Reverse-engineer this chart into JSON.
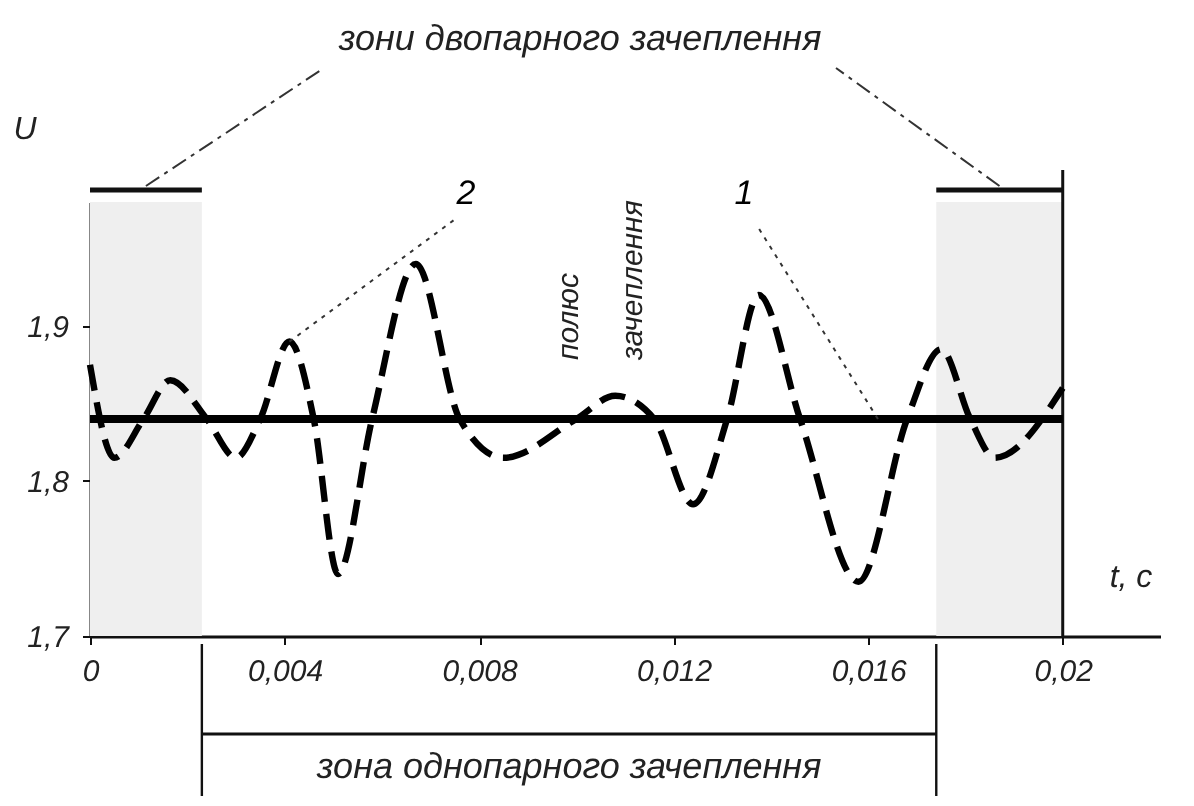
{
  "chart_data": {
    "type": "line",
    "xlabel": "t, c",
    "ylabel": "U",
    "xlim": [
      0,
      0.022
    ],
    "ylim": [
      1.7,
      1.98
    ],
    "xticks": [
      0,
      {
        "value": 0.004,
        "label": "0,004"
      },
      {
        "value": 0.008,
        "label": "0,008"
      },
      {
        "value": 0.012,
        "label": "0,012"
      },
      {
        "value": 0.016,
        "label": "0,016"
      },
      {
        "value": 0.02,
        "label": "0,02"
      }
    ],
    "yticks": [
      {
        "value": 1.7,
        "label": "1,7"
      },
      {
        "value": 1.8,
        "label": "1,8"
      },
      {
        "value": 1.9,
        "label": "1,9"
      }
    ],
    "series": [
      {
        "name": "1",
        "color": "#000000",
        "line_style": "solid",
        "x": [
          0,
          0.02
        ],
        "values": [
          1.84,
          1.84
        ]
      },
      {
        "name": "2",
        "color": "#000000",
        "line_style": "dashed",
        "x": [
          0,
          0.0005,
          0.0011,
          0.00165,
          0.0024,
          0.003,
          0.0035,
          0.0041,
          0.0046,
          0.0051,
          0.0058,
          0.0067,
          0.0076,
          0.0085,
          0.01,
          0.0108,
          0.0116,
          0.0124,
          0.0131,
          0.01375,
          0.0146,
          0.0158,
          0.0168,
          0.0175,
          0.0181,
          0.0186,
          0.02
        ],
        "values": [
          1.875,
          1.815,
          1.84,
          1.865,
          1.84,
          1.815,
          1.84,
          1.89,
          1.84,
          1.74,
          1.84,
          1.94,
          1.84,
          1.815,
          1.84,
          1.855,
          1.84,
          1.785,
          1.84,
          1.92,
          1.84,
          1.735,
          1.84,
          1.885,
          1.84,
          1.815,
          1.86
        ]
      }
    ],
    "ref_lines": [
      {
        "axis": "x",
        "value": 0.02
      }
    ],
    "bands": [
      {
        "axis": "x",
        "from": 0,
        "to": 0.0023
      },
      {
        "axis": "x",
        "from": 0.0174,
        "to": 0.02
      }
    ],
    "annotations": [
      "зони двопарного зачеплення",
      "зона однопарного зачеплення",
      "полюс зачеплення"
    ]
  }
}
